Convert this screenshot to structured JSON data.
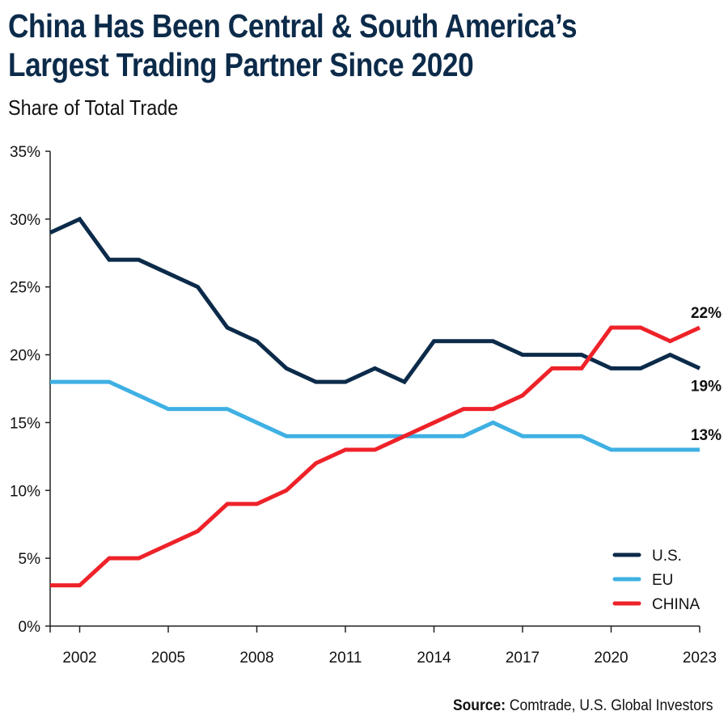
{
  "title_line1": "China Has Been Central & South America’s",
  "title_line2": "Largest Trading Partner Since 2020",
  "subtitle": "Share of Total Trade",
  "source_label": "Source:",
  "source_text": " Comtrade, U.S. Global Investors",
  "chart_data": {
    "type": "line",
    "title": "China Has Been Central & South America’s Largest Trading Partner Since 2020",
    "subtitle": "Share of Total Trade",
    "x": [
      2001,
      2002,
      2003,
      2004,
      2005,
      2006,
      2007,
      2008,
      2009,
      2010,
      2011,
      2012,
      2013,
      2014,
      2015,
      2016,
      2017,
      2018,
      2019,
      2020,
      2021,
      2022,
      2023
    ],
    "xlim": [
      2001,
      2023
    ],
    "x_ticks": [
      "2002",
      "2005",
      "2008",
      "2011",
      "2014",
      "2017",
      "2020",
      "2023"
    ],
    "ylim": [
      0,
      35
    ],
    "y_ticks": [
      "0%",
      "5%",
      "10%",
      "15%",
      "20%",
      "25%",
      "30%",
      "35%"
    ],
    "grid": false,
    "legend_position": "bottom-right",
    "series": [
      {
        "name": "U.S.",
        "color": "#0c2b4a",
        "end_label": "19%",
        "values": [
          29,
          30,
          27,
          27,
          26,
          25,
          22,
          21,
          19,
          18,
          18,
          19,
          18,
          21,
          21,
          21,
          20,
          20,
          20,
          19,
          19,
          20,
          19
        ]
      },
      {
        "name": "EU",
        "color": "#3fb0e3",
        "end_label": "13%",
        "values": [
          18,
          18,
          18,
          17,
          16,
          16,
          16,
          15,
          14,
          14,
          14,
          14,
          14,
          14,
          14,
          15,
          14,
          14,
          14,
          13,
          13,
          13,
          13
        ]
      },
      {
        "name": "CHINA",
        "color": "#ee2229",
        "end_label": "22%",
        "values": [
          3,
          3,
          5,
          5,
          6,
          7,
          9,
          9,
          10,
          12,
          13,
          13,
          14,
          15,
          16,
          16,
          17,
          19,
          19,
          22,
          22,
          21,
          22
        ]
      }
    ]
  }
}
